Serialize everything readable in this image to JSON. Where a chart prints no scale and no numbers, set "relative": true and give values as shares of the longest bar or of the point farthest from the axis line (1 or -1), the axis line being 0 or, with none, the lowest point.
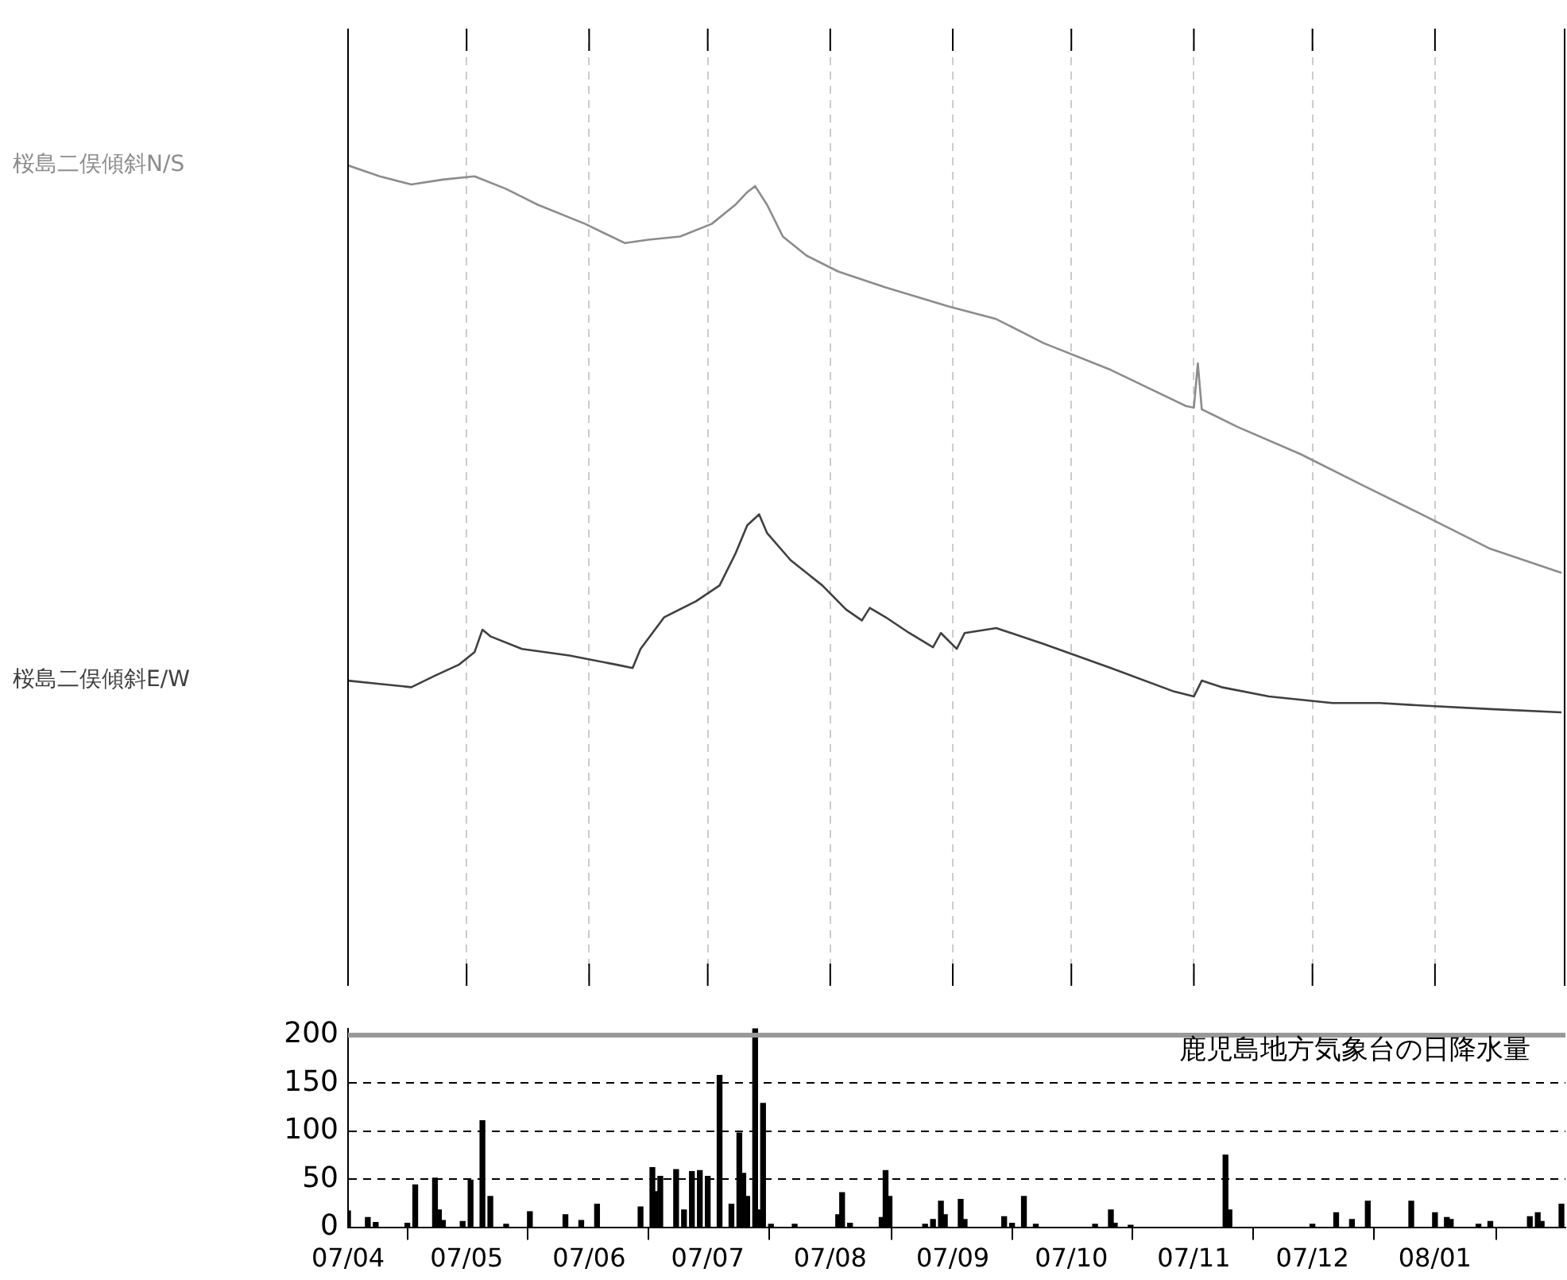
{
  "chart_data": [
    {
      "type": "line",
      "relative": true,
      "tick_labels": false,
      "grid": "x",
      "line_style": "solid",
      "xlim": [
        "2007-04-01",
        "2008-02-03"
      ],
      "xticks": [
        "2007-04",
        "2007-05",
        "2007-06",
        "2007-07",
        "2007-08",
        "2007-09",
        "2007-10",
        "2007-11",
        "2007-12",
        "2008-01"
      ],
      "series": [
        {
          "name": "桜島二俣傾斜N/S",
          "color": "#8c8c8c",
          "x": [
            "2007-04-01",
            "2007-04-09",
            "2007-04-17",
            "2007-04-25",
            "2007-05-03",
            "2007-05-11",
            "2007-05-19",
            "2007-05-31",
            "2007-06-10",
            "2007-06-16",
            "2007-06-24",
            "2007-07-02",
            "2007-07-08",
            "2007-07-11",
            "2007-07-13",
            "2007-07-16",
            "2007-07-20",
            "2007-07-26",
            "2007-08-03",
            "2007-08-15",
            "2007-08-31",
            "2007-09-12",
            "2007-09-24",
            "2007-10-11",
            "2007-10-30",
            "2007-11-01",
            "2007-11-02",
            "2007-11-03",
            "2007-11-12",
            "2007-11-28",
            "2007-12-14",
            "2007-12-30",
            "2008-01-15",
            "2008-02-02"
          ],
          "values": [
            1,
            0.98,
            0.965,
            0.974,
            0.98,
            0.957,
            0.928,
            0.893,
            0.858,
            0.864,
            0.87,
            0.893,
            0.928,
            0.951,
            0.962,
            0.928,
            0.87,
            0.835,
            0.806,
            0.777,
            0.742,
            0.719,
            0.675,
            0.626,
            0.56,
            0.557,
            0.638,
            0.554,
            0.522,
            0.472,
            0.414,
            0.357,
            0.299,
            0.255
          ]
        },
        {
          "name": "桜島二俣傾斜E/W",
          "color": "#404040",
          "x": [
            "2007-04-01",
            "2007-04-09",
            "2007-04-17",
            "2007-04-23",
            "2007-04-29",
            "2007-05-03",
            "2007-05-05",
            "2007-05-07",
            "2007-05-15",
            "2007-05-27",
            "2007-06-08",
            "2007-06-12",
            "2007-06-14",
            "2007-06-20",
            "2007-06-28",
            "2007-07-04",
            "2007-07-08",
            "2007-07-11",
            "2007-07-14",
            "2007-07-16",
            "2007-07-22",
            "2007-07-30",
            "2007-08-05",
            "2007-08-09",
            "2007-08-11",
            "2007-08-15",
            "2007-08-21",
            "2007-08-27",
            "2007-08-29",
            "2007-09-02",
            "2007-09-04",
            "2007-09-12",
            "2007-09-24",
            "2007-10-11",
            "2007-10-27",
            "2007-11-01",
            "2007-11-03",
            "2007-11-08",
            "2007-11-20",
            "2007-12-06",
            "2007-12-18",
            "2007-12-30",
            "2008-01-15",
            "2008-02-02"
          ],
          "values": [
            0.058,
            0.052,
            0.046,
            0.067,
            0.087,
            0.11,
            0.151,
            0.139,
            0.116,
            0.104,
            0.087,
            0.081,
            0.116,
            0.174,
            0.203,
            0.232,
            0.29,
            0.342,
            0.362,
            0.328,
            0.278,
            0.232,
            0.188,
            0.168,
            0.191,
            0.174,
            0.145,
            0.119,
            0.145,
            0.116,
            0.145,
            0.154,
            0.125,
            0.081,
            0.038,
            0.029,
            0.058,
            0.046,
            0.029,
            0.017,
            0.017,
            0.012,
            0.006,
            0
          ]
        }
      ]
    },
    {
      "type": "bar",
      "grid": "y",
      "annotations": [
        "鹿児島地方気象台の日降水量"
      ],
      "xlim": [
        "2007-04-01",
        "2008-02-03"
      ],
      "xticks": [
        {
          "value": "2007-04",
          "label": "07/04"
        },
        {
          "value": "2007-05",
          "label": "07/05"
        },
        {
          "value": "2007-06",
          "label": "07/06"
        },
        {
          "value": "2007-07",
          "label": "07/07"
        },
        {
          "value": "2007-08",
          "label": "07/08"
        },
        {
          "value": "2007-09",
          "label": "07/09"
        },
        {
          "value": "2007-10",
          "label": "07/10"
        },
        {
          "value": "2007-11",
          "label": "07/11"
        },
        {
          "value": "2007-12",
          "label": "07/12"
        },
        {
          "value": "2008-01",
          "label": "08/01"
        }
      ],
      "ylim": [
        0,
        207
      ],
      "yticks": [
        0,
        50,
        100,
        150,
        200
      ],
      "ref_lines": [
        {
          "axis": "y",
          "value": 200,
          "color": "#999999"
        }
      ],
      "series": [
        {
          "color": "#000000",
          "x": [
            "2007-04-01",
            "2007-04-06",
            "2007-04-08",
            "2007-04-16",
            "2007-04-18",
            "2007-04-23",
            "2007-04-24",
            "2007-04-25",
            "2007-04-30",
            "2007-05-02",
            "2007-05-05",
            "2007-05-07",
            "2007-05-11",
            "2007-05-17",
            "2007-05-26",
            "2007-05-30",
            "2007-06-03",
            "2007-06-14",
            "2007-06-17",
            "2007-06-18",
            "2007-06-19",
            "2007-06-23",
            "2007-06-25",
            "2007-06-27",
            "2007-06-29",
            "2007-07-01",
            "2007-07-04",
            "2007-07-07",
            "2007-07-09",
            "2007-07-10",
            "2007-07-11",
            "2007-07-13",
            "2007-07-14",
            "2007-07-15",
            "2007-07-17",
            "2007-07-23",
            "2007-08-03",
            "2007-08-04",
            "2007-08-06",
            "2007-08-14",
            "2007-08-15",
            "2007-08-16",
            "2007-08-25",
            "2007-08-27",
            "2007-08-29",
            "2007-08-30",
            "2007-09-03",
            "2007-09-04",
            "2007-09-14",
            "2007-09-16",
            "2007-09-19",
            "2007-09-22",
            "2007-10-07",
            "2007-10-11",
            "2007-10-12",
            "2007-10-16",
            "2007-11-09",
            "2007-11-10",
            "2007-12-01",
            "2007-12-07",
            "2007-12-11",
            "2007-12-15",
            "2007-12-26",
            "2008-01-01",
            "2008-01-04",
            "2008-01-05",
            "2008-01-12",
            "2008-01-15",
            "2008-01-25",
            "2008-01-27",
            "2008-01-28",
            "2008-02-02"
          ],
          "values": [
            17,
            10,
            5,
            4,
            44,
            51,
            18,
            7,
            6,
            49,
            111,
            32,
            3,
            16,
            13,
            7,
            24,
            21,
            62,
            37,
            53,
            60,
            18,
            58,
            59,
            53,
            158,
            24,
            98,
            56,
            32,
            207,
            18,
            129,
            3,
            3,
            13,
            36,
            4,
            10,
            59,
            32,
            3,
            8,
            27,
            13,
            29,
            8,
            11,
            4,
            32,
            3,
            3,
            18,
            4,
            2,
            75,
            18,
            3,
            15,
            8,
            27,
            27,
            15,
            10,
            8,
            3,
            6,
            11,
            15,
            6,
            24
          ]
        }
      ]
    }
  ]
}
